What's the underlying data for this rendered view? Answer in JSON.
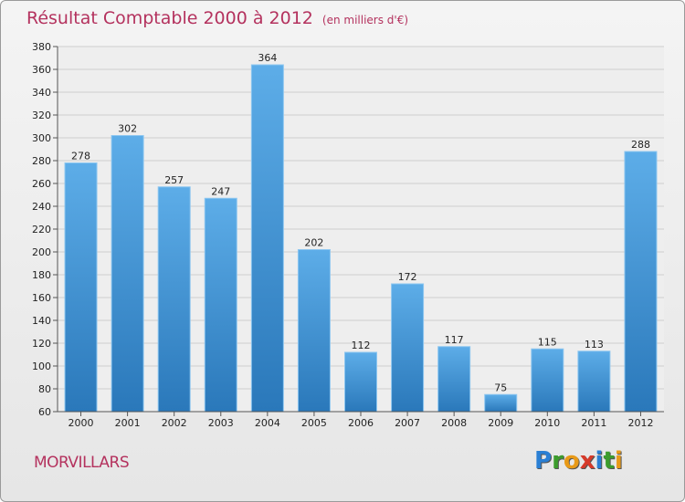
{
  "chart_data": {
    "type": "bar",
    "title": "Résultat Comptable 2000 à 2012",
    "subtitle": "(en milliers d'€)",
    "categories": [
      "2000",
      "2001",
      "2002",
      "2003",
      "2004",
      "2005",
      "2006",
      "2007",
      "2008",
      "2009",
      "2010",
      "2011",
      "2012"
    ],
    "values": [
      278,
      302,
      257,
      247,
      364,
      202,
      112,
      172,
      117,
      75,
      115,
      113,
      288
    ],
    "ylim": [
      60,
      380
    ],
    "yticks": [
      60,
      80,
      100,
      120,
      140,
      160,
      180,
      200,
      220,
      240,
      260,
      280,
      300,
      320,
      340,
      360,
      380
    ],
    "xlabel": "",
    "ylabel": "",
    "grid": true
  },
  "commune": "MORVILLARS",
  "logo": {
    "letters": [
      {
        "char": "P",
        "color": "#2a7fd4"
      },
      {
        "char": "r",
        "color": "#3c9c2c"
      },
      {
        "char": "o",
        "color": "#e89a18"
      },
      {
        "char": "x",
        "color": "#d63a2a"
      },
      {
        "char": "i",
        "color": "#2a7fd4"
      },
      {
        "char": "t",
        "color": "#3c9c2c"
      },
      {
        "char": "i",
        "color": "#e89a18"
      }
    ]
  },
  "colors": {
    "bar_top": "#5dade8",
    "bar_bottom": "#2a78ba",
    "title": "#b4325e"
  }
}
